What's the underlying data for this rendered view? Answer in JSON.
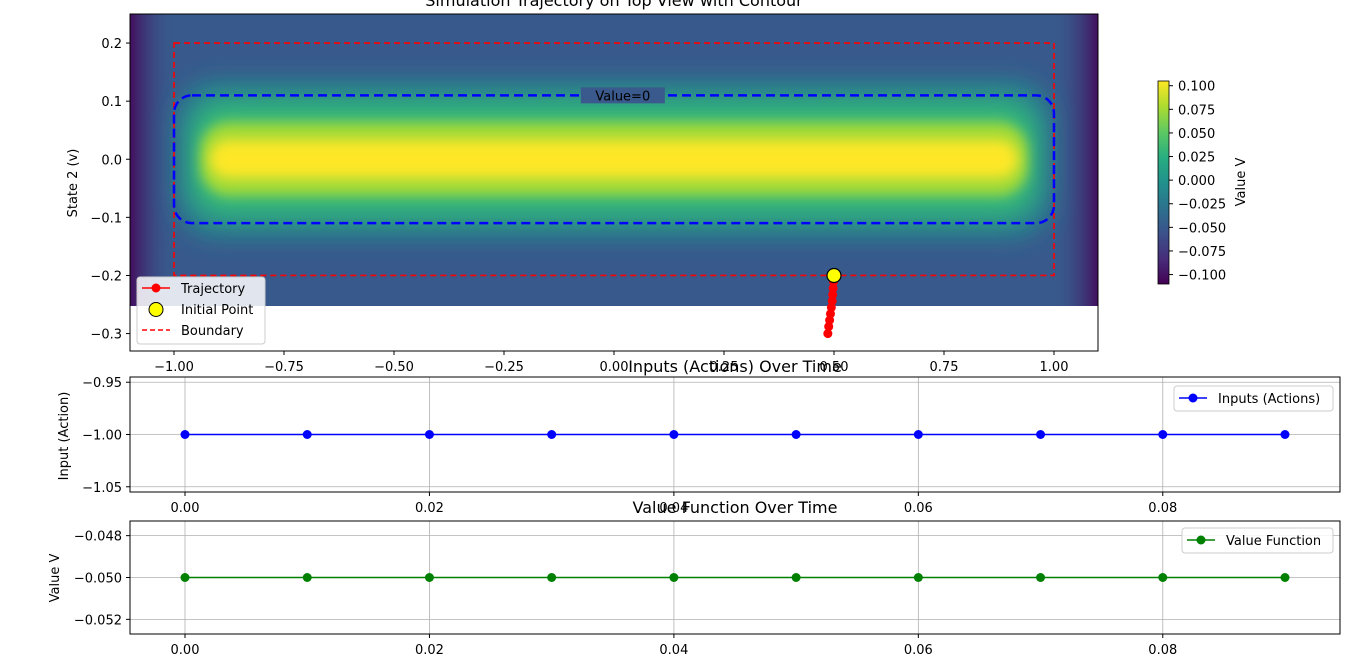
{
  "chart_data": [
    {
      "type": "heatmap",
      "title": "Simulation Trajectory on Top View with Contour",
      "xlabel": "",
      "ylabel": "State 2 (v)",
      "xlim": [
        -1.1,
        1.1
      ],
      "ylim": [
        -0.33,
        0.25
      ],
      "xticks": [
        "−1.00",
        "−0.75",
        "−0.50",
        "−0.25",
        "0.00",
        "0.25",
        "0.50",
        "0.75",
        "1.00"
      ],
      "xtick_values": [
        -1.0,
        -0.75,
        -0.5,
        -0.25,
        0.0,
        0.25,
        0.5,
        0.75,
        1.0
      ],
      "yticks": [
        "0.2",
        "0.1",
        "0.0",
        "−0.1",
        "−0.2",
        "−0.3"
      ],
      "ytick_values": [
        0.2,
        0.1,
        0.0,
        -0.1,
        -0.2,
        -0.3
      ],
      "heatmap_extent": {
        "x": [
          -1.1,
          1.1
        ],
        "y": [
          -0.25,
          0.25
        ]
      },
      "contour": {
        "label": "Value=0",
        "level": 0,
        "x": [
          -1.0,
          1.0
        ],
        "y": [
          -0.11,
          0.11
        ],
        "color": "#0000ff"
      },
      "boundary": {
        "x": [
          -1.0,
          1.0
        ],
        "y": [
          -0.2,
          0.2
        ],
        "color": "#ff0000"
      },
      "trajectory": {
        "x": [
          0.5,
          0.499,
          0.498,
          0.497,
          0.496,
          0.494,
          0.492,
          0.49,
          0.488,
          0.486
        ],
        "y": [
          -0.2,
          -0.211,
          -0.222,
          -0.233,
          -0.244,
          -0.255,
          -0.266,
          -0.277,
          -0.288,
          -0.3
        ],
        "color": "#ff0000"
      },
      "initial_point": {
        "x": 0.5,
        "y": -0.2
      },
      "legend": {
        "position": "lower-left",
        "entries": [
          "Trajectory",
          "Initial Point",
          "Boundary"
        ]
      },
      "colorbar": {
        "label": "Value V",
        "range": [
          -0.11,
          0.105
        ],
        "ticks": [
          "0.100",
          "0.075",
          "0.050",
          "0.025",
          "0.000",
          "−0.025",
          "−0.050",
          "−0.075",
          "−0.100"
        ],
        "tick_values": [
          0.1,
          0.075,
          0.05,
          0.025,
          0.0,
          -0.025,
          -0.05,
          -0.075,
          -0.1
        ]
      },
      "grid": false
    },
    {
      "type": "line",
      "title": "Inputs (Actions) Over Time",
      "xlabel": "",
      "ylabel": "Input (Action)",
      "xlim": [
        -0.0045,
        0.0945
      ],
      "ylim": [
        -1.055,
        -0.945
      ],
      "xticks": [
        "0.00",
        "0.02",
        "0.04",
        "0.06",
        "0.08"
      ],
      "xtick_values": [
        0.0,
        0.02,
        0.04,
        0.06,
        0.08
      ],
      "yticks": [
        "−0.95",
        "−1.00",
        "−1.05"
      ],
      "ytick_values": [
        -0.95,
        -1.0,
        -1.05
      ],
      "series": [
        {
          "name": "Inputs (Actions)",
          "color": "#0000ff",
          "x": [
            0.0,
            0.01,
            0.02,
            0.03,
            0.04,
            0.05,
            0.06,
            0.07,
            0.08,
            0.09
          ],
          "values": [
            -1.0,
            -1.0,
            -1.0,
            -1.0,
            -1.0,
            -1.0,
            -1.0,
            -1.0,
            -1.0,
            -1.0
          ]
        }
      ],
      "legend": {
        "position": "top-right"
      },
      "grid": true
    },
    {
      "type": "line",
      "title": "Value Function Over Time",
      "xlabel": "",
      "ylabel": "Value V",
      "xlim": [
        -0.0045,
        0.0945
      ],
      "ylim": [
        -0.0527,
        -0.0473
      ],
      "xticks": [
        "0.00",
        "0.02",
        "0.04",
        "0.06",
        "0.08"
      ],
      "xtick_values": [
        0.0,
        0.02,
        0.04,
        0.06,
        0.08
      ],
      "yticks": [
        "−0.048",
        "−0.050",
        "−0.052"
      ],
      "ytick_values": [
        -0.048,
        -0.05,
        -0.052
      ],
      "series": [
        {
          "name": "Value Function",
          "color": "#008000",
          "x": [
            0.0,
            0.01,
            0.02,
            0.03,
            0.04,
            0.05,
            0.06,
            0.07,
            0.08,
            0.09
          ],
          "values": [
            -0.05,
            -0.05,
            -0.05,
            -0.05,
            -0.05,
            -0.05,
            -0.05,
            -0.05,
            -0.05,
            -0.05
          ]
        }
      ],
      "legend": {
        "position": "top-right"
      },
      "grid": true
    }
  ]
}
